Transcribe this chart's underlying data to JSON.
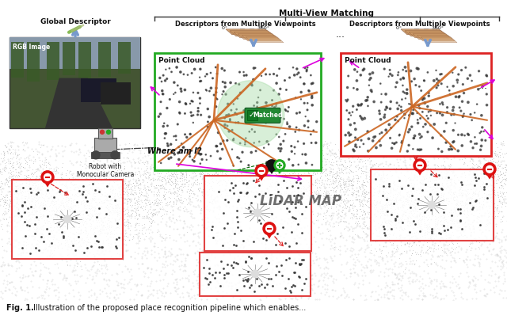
{
  "fig_width": 6.4,
  "fig_height": 4.08,
  "dpi": 100,
  "background_color": "#ffffff",
  "labels": {
    "global_descriptor": "Global Descriptor",
    "descriptors_mv1": "Descriptors from Multiple Viewpoints",
    "descriptors_mv2": "Descriptors from Multiple Viewpoints",
    "rgb_image": "RGB Image",
    "where_am_i": "Where am I?",
    "robot_label": "Robot with\nMonocular Camera",
    "point_cloud1": "Point Cloud",
    "point_cloud2": "Point Cloud",
    "matched": "Matched",
    "lidar_map": "LiDAR MAP",
    "range1": "0°        ...   ...  360°",
    "range2": "0°        ...   ...  360°",
    "dots_mid": "...",
    "dots_right": "...",
    "multi_view": "Multi-View Matching"
  },
  "colors": {
    "green_box": "#22aa22",
    "red_box": "#dd2222",
    "orange": "#cc6622",
    "orange_light": "#ddaa88",
    "magenta": "#dd00dd",
    "blue_arrow": "#7799cc",
    "green_hl": "#aaddaa",
    "matched_green": "#228833",
    "pin_red": "#dd1111",
    "pin_black": "#111111",
    "pin_green": "#22aa22",
    "dashed_black": "#444444",
    "dashed_red": "#dd2222",
    "text_black": "#111111",
    "lidar_gray": "#888888",
    "descriptor_brown": "#aa6633",
    "descriptor_edge": "#774422",
    "green_diag": "#88aa66"
  }
}
